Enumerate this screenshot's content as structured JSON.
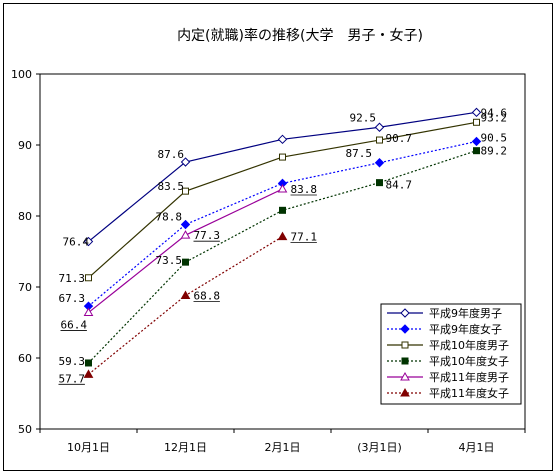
{
  "chart_data": {
    "type": "line",
    "title": "内定(就職)率の推移(大学　男子・女子)",
    "categories": [
      "10月1日",
      "12月1日",
      "2月1日",
      "(3月1日)",
      "4月1日"
    ],
    "ylim": [
      50,
      100
    ],
    "yticks": [
      50,
      60,
      70,
      80,
      90,
      100
    ],
    "grid": false,
    "legend": "bottom-right",
    "series": [
      {
        "name": "平成9年度男子",
        "color": "#000080",
        "dash": "",
        "marker": "diamond-open",
        "values": [
          76.4,
          87.6,
          90.8,
          92.5,
          94.6
        ],
        "labels": [
          "76.4",
          "87.6",
          "",
          "92.5",
          "94.6"
        ],
        "underline": false
      },
      {
        "name": "平成9年度女子",
        "color": "#0000FF",
        "dash": "2,2",
        "marker": "diamond-filled",
        "values": [
          67.3,
          78.8,
          84.6,
          87.5,
          90.5
        ],
        "labels": [
          "67.3",
          "78.8",
          "",
          "87.5",
          "90.5"
        ],
        "underline": false
      },
      {
        "name": "平成10年度男子",
        "color": "#333300",
        "dash": "",
        "marker": "square-open",
        "values": [
          71.3,
          83.5,
          88.3,
          90.7,
          93.2
        ],
        "labels": [
          "71.3",
          "83.5",
          "",
          "90.7",
          "93.2"
        ],
        "underline": false
      },
      {
        "name": "平成10年度女子",
        "color": "#003300",
        "dash": "2,2",
        "marker": "square-filled",
        "values": [
          59.3,
          73.5,
          80.8,
          84.7,
          89.2
        ],
        "labels": [
          "59.3",
          "73.5",
          "",
          "84.7",
          "89.2"
        ],
        "underline": false
      },
      {
        "name": "平成11年度男子",
        "color": "#990099",
        "dash": "",
        "marker": "triangle-open",
        "values": [
          66.4,
          77.3,
          83.8,
          null,
          null
        ],
        "labels": [
          "66.4",
          "77.3",
          "83.8",
          "",
          ""
        ],
        "underline": true
      },
      {
        "name": "平成11年度女子",
        "color": "#800000",
        "dash": "2,2",
        "marker": "triangle-filled",
        "values": [
          57.7,
          68.8,
          77.1,
          null,
          null
        ],
        "labels": [
          "57.7",
          "68.8",
          "77.1",
          "",
          ""
        ],
        "underline": true
      }
    ]
  }
}
